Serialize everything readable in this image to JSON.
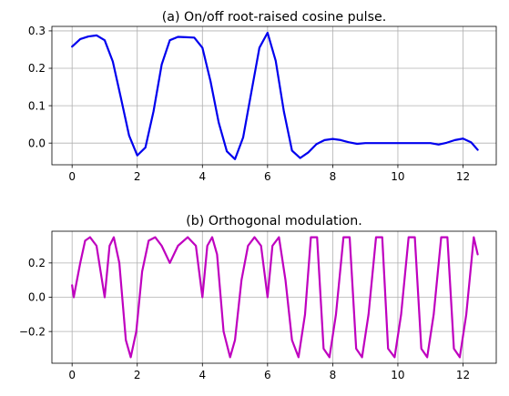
{
  "chart_data": [
    {
      "type": "line",
      "title": "(a) On/off root-raised cosine pulse.",
      "xlabel": "",
      "ylabel": "",
      "xlim": [
        -0.62,
        13.02
      ],
      "ylim": [
        -0.058,
        0.312
      ],
      "xticks": [
        0,
        2,
        4,
        6,
        8,
        10,
        12
      ],
      "xtick_labels": [
        "0",
        "2",
        "4",
        "6",
        "8",
        "10",
        "12"
      ],
      "yticks": [
        0.0,
        0.1,
        0.2,
        0.3
      ],
      "ytick_labels": [
        "0.0",
        "0.1",
        "0.2",
        "0.3"
      ],
      "grid": true,
      "color": "#0000ee",
      "series": [
        {
          "x": [
            0,
            0.25,
            0.5,
            0.75,
            1.0,
            1.25,
            1.5,
            1.75,
            2.0,
            2.25,
            2.5,
            2.75,
            3.0,
            3.25,
            3.5,
            3.75,
            4.0,
            4.25,
            4.5,
            4.75,
            5.0,
            5.25,
            5.5,
            5.75,
            6.0,
            6.25,
            6.5,
            6.75,
            7.0,
            7.25,
            7.5,
            7.75,
            8.0,
            8.25,
            8.5,
            8.75,
            9.0,
            9.5,
            10.0,
            10.5,
            11.0,
            11.25,
            11.5,
            11.75,
            12.0,
            12.25,
            12.45
          ],
          "y": [
            0.258,
            0.278,
            0.285,
            0.288,
            0.275,
            0.218,
            0.12,
            0.02,
            -0.033,
            -0.012,
            0.085,
            0.21,
            0.275,
            0.284,
            0.283,
            0.282,
            0.255,
            0.165,
            0.055,
            -0.022,
            -0.043,
            0.015,
            0.135,
            0.255,
            0.295,
            0.22,
            0.085,
            -0.02,
            -0.04,
            -0.025,
            -0.003,
            0.008,
            0.011,
            0.008,
            0.002,
            -0.002,
            0.0,
            0.0,
            0.0,
            0.0,
            0.0,
            -0.004,
            0.001,
            0.008,
            0.012,
            0.002,
            -0.018
          ]
        }
      ]
    },
    {
      "type": "line",
      "title": "(b) Orthogonal modulation.",
      "xlabel": "",
      "ylabel": "",
      "xlim": [
        -0.62,
        13.02
      ],
      "ylim": [
        -0.385,
        0.385
      ],
      "xticks": [
        0,
        2,
        4,
        6,
        8,
        10,
        12
      ],
      "xtick_labels": [
        "0",
        "2",
        "4",
        "6",
        "8",
        "10",
        "12"
      ],
      "yticks": [
        -0.2,
        0.0,
        0.2
      ],
      "ytick_labels": [
        "−0.2",
        "0.0",
        "0.2"
      ],
      "grid": true,
      "color": "#bf00bf",
      "series": [
        {
          "x": [
            0,
            0.05,
            0.25,
            0.4,
            0.55,
            0.75,
            1.0,
            1.15,
            1.28,
            1.45,
            1.65,
            1.8,
            1.97,
            2.15,
            2.35,
            2.55,
            2.75,
            3.0,
            3.25,
            3.55,
            3.8,
            4.0,
            4.15,
            4.3,
            4.45,
            4.65,
            4.85,
            5.0,
            5.2,
            5.4,
            5.6,
            5.8,
            6.0,
            6.15,
            6.35,
            6.55,
            6.75,
            6.95,
            7.15,
            7.33,
            7.52,
            7.72,
            7.9,
            8.1,
            8.33,
            8.52,
            8.72,
            8.9,
            9.1,
            9.33,
            9.52,
            9.7,
            9.9,
            10.1,
            10.33,
            10.52,
            10.72,
            10.9,
            11.1,
            11.33,
            11.52,
            11.72,
            11.9,
            12.1,
            12.33,
            12.45
          ],
          "y": [
            0.07,
            0.0,
            0.2,
            0.33,
            0.35,
            0.3,
            0.0,
            0.3,
            0.35,
            0.2,
            -0.25,
            -0.35,
            -0.2,
            0.15,
            0.33,
            0.35,
            0.3,
            0.2,
            0.3,
            0.35,
            0.3,
            0.0,
            0.3,
            0.35,
            0.25,
            -0.2,
            -0.35,
            -0.25,
            0.1,
            0.3,
            0.35,
            0.3,
            0.0,
            0.3,
            0.35,
            0.1,
            -0.25,
            -0.35,
            -0.1,
            0.35,
            0.35,
            -0.3,
            -0.35,
            -0.1,
            0.35,
            0.35,
            -0.3,
            -0.35,
            -0.1,
            0.35,
            0.35,
            -0.3,
            -0.35,
            -0.1,
            0.35,
            0.35,
            -0.3,
            -0.35,
            -0.1,
            0.35,
            0.35,
            -0.3,
            -0.35,
            -0.1,
            0.35,
            0.25
          ]
        }
      ]
    }
  ]
}
